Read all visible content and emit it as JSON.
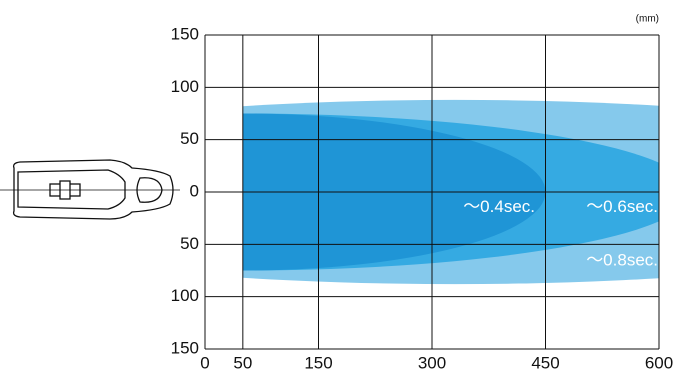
{
  "chart_data": {
    "type": "area-zones",
    "unit_label": "(mm)",
    "xlim": [
      0,
      600
    ],
    "xticks": [
      0,
      50,
      150,
      300,
      450,
      600
    ],
    "ylim": [
      -150,
      150
    ],
    "yticks": [
      150,
      100,
      50,
      0,
      {
        "value": -50,
        "label": "50"
      },
      {
        "value": -100,
        "label": "100"
      },
      {
        "value": -150,
        "label": "150"
      }
    ],
    "grid": true,
    "zones": [
      {
        "name": "～0.8sec.",
        "color": "#85c9ec",
        "x_start": 50,
        "center_x": 330,
        "radius_x": 770,
        "half_height": 88
      },
      {
        "name": "～0.6sec.",
        "color": "#35aae2",
        "x_start": 50,
        "center_x": 50,
        "radius_x": 593,
        "half_height": 75
      },
      {
        "name": "～0.4sec.",
        "color": "#1f95d6",
        "x_start": 50,
        "center_x": 50,
        "radius_x": 400,
        "half_height": 75
      }
    ]
  }
}
